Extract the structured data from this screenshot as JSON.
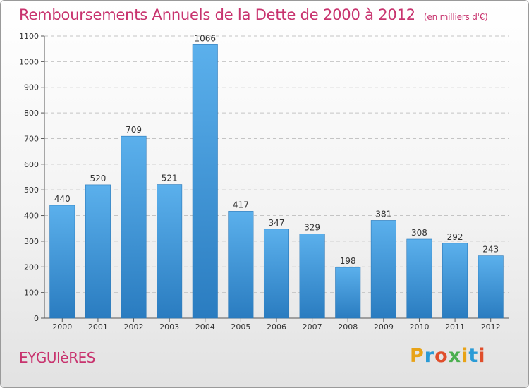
{
  "header": {
    "title": "Remboursements Annuels de la Dette de 2000 à 2012",
    "subtitle": "(en milliers d'€)"
  },
  "footer": {
    "city": "EYGUIèRES",
    "brand": "Proxiti",
    "brand_colors": [
      "#e8a317",
      "#2a9bd6",
      "#e04e2b",
      "#4caf50",
      "#e8a317",
      "#2a9bd6",
      "#e04e2b"
    ]
  },
  "chart_data": {
    "type": "bar",
    "categories": [
      "2000",
      "2001",
      "2002",
      "2003",
      "2004",
      "2005",
      "2006",
      "2007",
      "2008",
      "2009",
      "2010",
      "2011",
      "2012"
    ],
    "values": [
      440,
      520,
      709,
      521,
      1066,
      417,
      347,
      329,
      198,
      381,
      308,
      292,
      243
    ],
    "data_labels": [
      "440",
      "520",
      "709",
      "521",
      "1066",
      "417",
      "347",
      "329",
      "198",
      "381",
      "308",
      "292",
      "243"
    ],
    "ylim": [
      0,
      1100
    ],
    "yticks": [
      0,
      100,
      200,
      300,
      400,
      500,
      600,
      700,
      800,
      900,
      1000,
      1100
    ],
    "grid": true,
    "bar_color": "#3a95d8"
  }
}
